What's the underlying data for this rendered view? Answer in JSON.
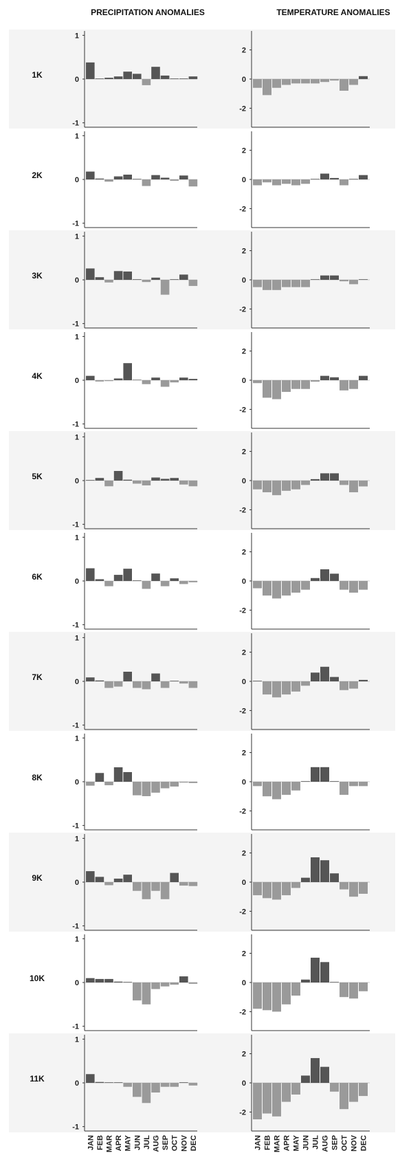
{
  "headers": {
    "left": "PRECIPITATION ANOMALIES",
    "right": "TEMPERATURE ANOMALIES"
  },
  "months": [
    "JAN",
    "FEB",
    "MAR",
    "APR",
    "MAY",
    "JUN",
    "JUL",
    "AUG",
    "SEP",
    "OCT",
    "NOV",
    "DEC"
  ],
  "colors": {
    "positive": "#555555",
    "negative": "#9a9a9a",
    "panel_bg_alt": "#f4f4f4",
    "axis": "#333333"
  },
  "chart_data": [
    {
      "type": "bar",
      "title": "PRECIPITATION ANOMALIES",
      "ylim": [
        -1.1,
        1.1
      ],
      "yticks": [
        1,
        0,
        -1
      ],
      "categories": [
        "JAN",
        "FEB",
        "MAR",
        "APR",
        "MAY",
        "JUN",
        "JUL",
        "AUG",
        "SEP",
        "OCT",
        "NOV",
        "DEC"
      ],
      "grid": false,
      "panels": [
        {
          "label": "1K",
          "values": [
            0.38,
            0.0,
            0.03,
            0.06,
            0.17,
            0.12,
            -0.14,
            0.28,
            0.08,
            0.0,
            0.0,
            0.06
          ]
        },
        {
          "label": "2K",
          "values": [
            0.18,
            0.02,
            -0.05,
            0.07,
            0.11,
            0.0,
            -0.15,
            0.1,
            0.04,
            -0.03,
            0.09,
            -0.16
          ]
        },
        {
          "label": "3K",
          "values": [
            0.26,
            0.06,
            -0.06,
            0.2,
            0.19,
            0.0,
            -0.05,
            0.05,
            -0.34,
            0.0,
            0.12,
            -0.14
          ]
        },
        {
          "label": "4K",
          "values": [
            0.1,
            -0.03,
            -0.02,
            0.04,
            0.39,
            0.01,
            -0.09,
            0.06,
            -0.15,
            -0.05,
            0.06,
            0.03
          ]
        },
        {
          "label": "5K",
          "values": [
            0.0,
            0.06,
            -0.13,
            0.22,
            0.02,
            -0.07,
            -0.11,
            0.07,
            0.04,
            0.06,
            -0.09,
            -0.13
          ]
        },
        {
          "label": "6K",
          "values": [
            0.29,
            0.04,
            -0.12,
            0.14,
            0.28,
            0.0,
            -0.18,
            0.17,
            -0.12,
            0.06,
            -0.07,
            -0.03
          ]
        },
        {
          "label": "7K",
          "values": [
            0.09,
            0.02,
            -0.15,
            -0.12,
            0.22,
            -0.15,
            -0.18,
            0.18,
            -0.15,
            0.0,
            -0.05,
            -0.15
          ]
        },
        {
          "label": "8K",
          "values": [
            -0.09,
            0.2,
            -0.08,
            0.33,
            0.22,
            -0.31,
            -0.33,
            -0.25,
            -0.15,
            -0.11,
            -0.02,
            -0.03
          ]
        },
        {
          "label": "9K",
          "values": [
            0.25,
            0.12,
            -0.07,
            0.08,
            0.17,
            -0.2,
            -0.39,
            -0.2,
            -0.39,
            0.21,
            -0.08,
            -0.09
          ]
        },
        {
          "label": "10K",
          "values": [
            0.1,
            0.08,
            0.08,
            0.02,
            0.0,
            -0.41,
            -0.5,
            -0.15,
            -0.09,
            -0.05,
            0.14,
            -0.03
          ]
        },
        {
          "label": "11K",
          "values": [
            0.2,
            0.02,
            0.0,
            0.0,
            -0.09,
            -0.32,
            -0.46,
            -0.22,
            -0.09,
            -0.09,
            0.0,
            -0.06
          ]
        }
      ]
    },
    {
      "type": "bar",
      "title": "TEMPERATURE ANOMALIES",
      "ylim": [
        -3.3,
        3.3
      ],
      "yticks": [
        2,
        0,
        -2
      ],
      "categories": [
        "JAN",
        "FEB",
        "MAR",
        "APR",
        "MAY",
        "JUN",
        "JUL",
        "AUG",
        "SEP",
        "OCT",
        "NOV",
        "DEC"
      ],
      "grid": false,
      "panels": [
        {
          "label": "1K",
          "values": [
            -0.6,
            -1.1,
            -0.6,
            -0.4,
            -0.3,
            -0.3,
            -0.3,
            -0.2,
            -0.1,
            -0.8,
            -0.4,
            0.2
          ]
        },
        {
          "label": "2K",
          "values": [
            -0.4,
            -0.2,
            -0.4,
            -0.3,
            -0.4,
            -0.3,
            0.0,
            0.4,
            0.1,
            -0.4,
            0.0,
            0.3
          ]
        },
        {
          "label": "3K",
          "values": [
            -0.5,
            -0.7,
            -0.7,
            -0.5,
            -0.5,
            -0.5,
            0.0,
            0.3,
            0.3,
            -0.1,
            -0.3,
            0.0
          ]
        },
        {
          "label": "4K",
          "values": [
            -0.2,
            -1.2,
            -1.3,
            -0.8,
            -0.6,
            -0.6,
            -0.1,
            0.3,
            0.2,
            -0.7,
            -0.6,
            0.3
          ]
        },
        {
          "label": "5K",
          "values": [
            -0.6,
            -0.8,
            -1.0,
            -0.7,
            -0.6,
            -0.3,
            0.1,
            0.5,
            0.5,
            -0.3,
            -0.8,
            -0.4
          ]
        },
        {
          "label": "6K",
          "values": [
            -0.5,
            -1.0,
            -1.2,
            -1.0,
            -0.8,
            -0.6,
            0.2,
            0.8,
            0.5,
            -0.6,
            -0.8,
            -0.6
          ]
        },
        {
          "label": "7K",
          "values": [
            0.0,
            -0.9,
            -1.1,
            -0.9,
            -0.7,
            -0.3,
            0.6,
            1.0,
            0.3,
            -0.6,
            -0.5,
            0.1
          ]
        },
        {
          "label": "8K",
          "values": [
            -0.3,
            -1.0,
            -1.2,
            -0.9,
            -0.6,
            0.0,
            1.0,
            1.0,
            0.0,
            -0.9,
            -0.3,
            -0.3
          ]
        },
        {
          "label": "9K",
          "values": [
            -0.9,
            -1.1,
            -1.2,
            -0.9,
            -0.4,
            0.3,
            1.7,
            1.5,
            0.6,
            -0.5,
            -1.0,
            -0.8
          ]
        },
        {
          "label": "10K",
          "values": [
            -1.8,
            -1.9,
            -2.0,
            -1.5,
            -0.9,
            0.2,
            1.7,
            1.4,
            0.0,
            -1.0,
            -1.1,
            -0.6
          ]
        },
        {
          "label": "11K",
          "values": [
            -2.5,
            -2.1,
            -2.3,
            -1.3,
            -0.8,
            0.5,
            1.7,
            1.1,
            -0.6,
            -1.8,
            -1.3,
            -0.9
          ]
        }
      ]
    }
  ]
}
